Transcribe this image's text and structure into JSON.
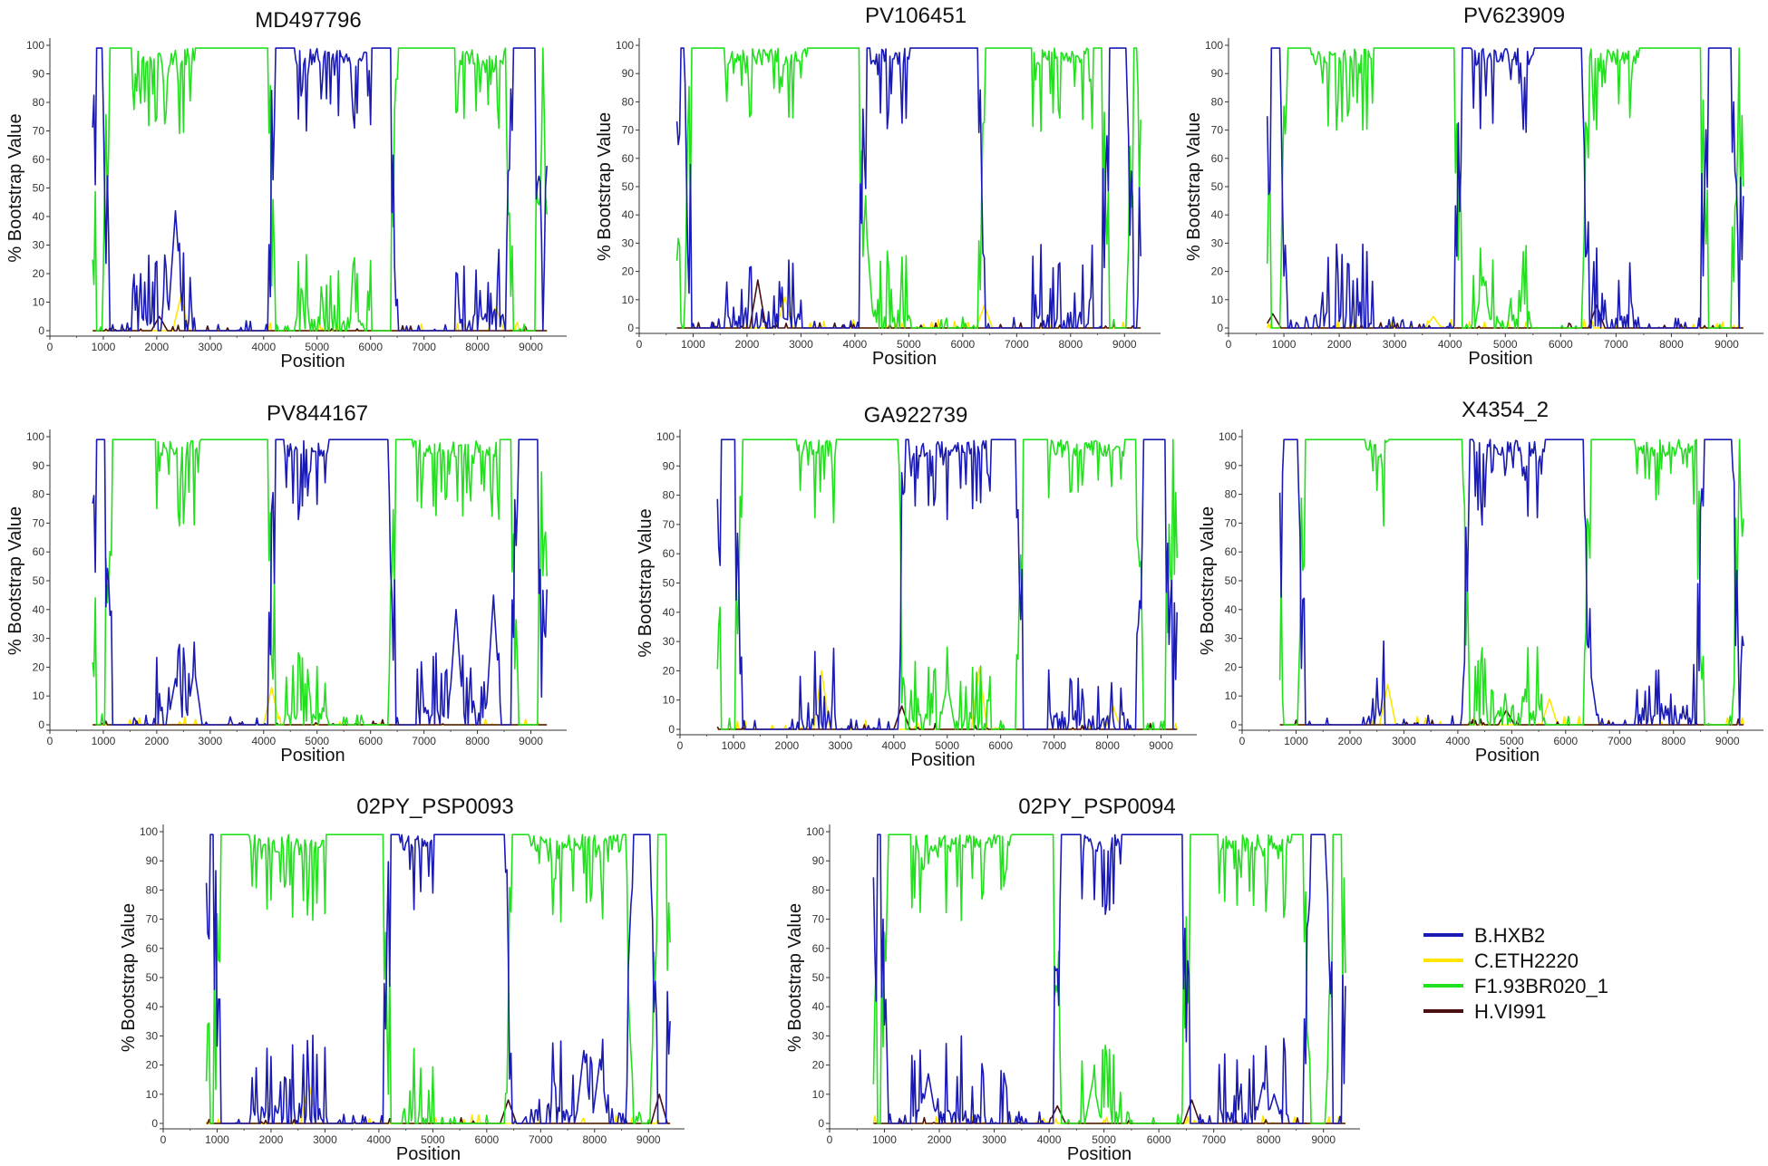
{
  "chart_data": {
    "type": "line",
    "xlabel": "Position",
    "ylabel": "% Bootstrap Value",
    "xlim": [
      0,
      9500
    ],
    "ylim": [
      0,
      100
    ],
    "xticks": [
      0,
      1000,
      2000,
      3000,
      4000,
      5000,
      6000,
      7000,
      8000,
      9000
    ],
    "yticks": [
      0,
      10,
      20,
      30,
      40,
      50,
      60,
      70,
      80,
      90,
      100
    ],
    "legend": [
      {
        "name": "B.HXB2",
        "color": "#1a1ab5"
      },
      {
        "name": "C.ETH2220",
        "color": "#ffe600"
      },
      {
        "name": "F1.93BR020_1",
        "color": "#22e01e"
      },
      {
        "name": "H.VI991",
        "color": "#4a1010"
      }
    ],
    "panels": [
      {
        "title": "MD497796",
        "x_start": 800,
        "x_end": 9300,
        "segments": [
          [
            800,
            1050,
            "B"
          ],
          [
            1050,
            4150,
            "F"
          ],
          [
            4150,
            6450,
            "B"
          ],
          [
            6450,
            8600,
            "F"
          ],
          [
            8600,
            9150,
            "B"
          ],
          [
            9150,
            9300,
            "F"
          ]
        ],
        "noise": [
          [
            1550,
            2700,
            "F"
          ],
          [
            7600,
            8500,
            "F"
          ],
          [
            4600,
            6000,
            "B"
          ]
        ],
        "small_peaks": [
          [
            2450,
            12,
            "C"
          ],
          [
            2350,
            42,
            "B"
          ],
          [
            8350,
            8,
            "C"
          ],
          [
            2050,
            5,
            "H"
          ]
        ]
      },
      {
        "title": "PV106451",
        "x_start": 700,
        "x_end": 9300,
        "segments": [
          [
            700,
            900,
            "B"
          ],
          [
            900,
            4150,
            "F"
          ],
          [
            4150,
            6350,
            "B"
          ],
          [
            6350,
            8650,
            "F"
          ],
          [
            8650,
            9100,
            "B"
          ],
          [
            9100,
            9300,
            "F"
          ]
        ],
        "noise": [
          [
            1600,
            3100,
            "F"
          ],
          [
            7300,
            8400,
            "F"
          ],
          [
            4300,
            5000,
            "B"
          ]
        ],
        "small_peaks": [
          [
            2200,
            17,
            "H"
          ],
          [
            2700,
            11,
            "C"
          ],
          [
            4200,
            38,
            "F"
          ],
          [
            6400,
            8,
            "C"
          ]
        ]
      },
      {
        "title": "PV623909",
        "x_start": 700,
        "x_end": 9300,
        "segments": [
          [
            700,
            1000,
            "B"
          ],
          [
            1000,
            4150,
            "F"
          ],
          [
            4150,
            6450,
            "B"
          ],
          [
            6450,
            8600,
            "F"
          ],
          [
            8600,
            9150,
            "B"
          ],
          [
            9150,
            9300,
            "F"
          ]
        ],
        "noise": [
          [
            1500,
            2600,
            "F"
          ],
          [
            4400,
            5500,
            "B"
          ],
          [
            6500,
            7400,
            "F"
          ]
        ],
        "small_peaks": [
          [
            800,
            5,
            "H"
          ],
          [
            6650,
            8,
            "H"
          ],
          [
            4600,
            18,
            "F"
          ],
          [
            3700,
            4,
            "C"
          ]
        ]
      },
      {
        "title": "PV844167",
        "x_start": 800,
        "x_end": 9300,
        "segments": [
          [
            800,
            1100,
            "B"
          ],
          [
            1100,
            4150,
            "F"
          ],
          [
            4150,
            6400,
            "B"
          ],
          [
            6400,
            8700,
            "F"
          ],
          [
            8700,
            9200,
            "B"
          ],
          [
            9200,
            9300,
            "F"
          ]
        ],
        "noise": [
          [
            2000,
            2800,
            "F"
          ],
          [
            6800,
            8400,
            "F"
          ],
          [
            4400,
            5200,
            "B"
          ]
        ],
        "small_peaks": [
          [
            2350,
            16,
            "B"
          ],
          [
            2700,
            20,
            "B"
          ],
          [
            4150,
            13,
            "C"
          ],
          [
            7600,
            40,
            "B"
          ],
          [
            8300,
            45,
            "B"
          ]
        ]
      },
      {
        "title": "GA922739",
        "x_start": 700,
        "x_end": 9300,
        "segments": [
          [
            700,
            1100,
            "B"
          ],
          [
            1100,
            4150,
            "F"
          ],
          [
            4150,
            6350,
            "B"
          ],
          [
            6350,
            8600,
            "F"
          ],
          [
            8600,
            9150,
            "B"
          ],
          [
            9150,
            9300,
            "F"
          ]
        ],
        "noise": [
          [
            2200,
            2900,
            "F"
          ],
          [
            4300,
            5800,
            "B"
          ],
          [
            6900,
            8300,
            "F"
          ]
        ],
        "small_peaks": [
          [
            2650,
            20,
            "C"
          ],
          [
            5600,
            21,
            "C"
          ],
          [
            4150,
            8,
            "H"
          ],
          [
            8100,
            8,
            "C"
          ],
          [
            5000,
            16,
            "F"
          ]
        ]
      },
      {
        "title": "X4354_2",
        "x_start": 700,
        "x_end": 9300,
        "segments": [
          [
            700,
            1100,
            "B"
          ],
          [
            1100,
            4150,
            "F"
          ],
          [
            4150,
            6400,
            "B"
          ],
          [
            6400,
            8500,
            "F"
          ],
          [
            8500,
            9150,
            "B"
          ],
          [
            9150,
            9300,
            "F"
          ]
        ],
        "noise": [
          [
            2300,
            2700,
            "F"
          ],
          [
            4300,
            5600,
            "B"
          ],
          [
            7300,
            8400,
            "F"
          ]
        ],
        "small_peaks": [
          [
            2700,
            14,
            "C"
          ],
          [
            5700,
            9,
            "C"
          ],
          [
            4900,
            5,
            "H"
          ],
          [
            4200,
            22,
            "B"
          ],
          [
            6450,
            20,
            "B"
          ]
        ]
      },
      {
        "title": "02PY_PSP0093",
        "x_start": 800,
        "x_end": 9400,
        "segments": [
          [
            800,
            1000,
            "B"
          ],
          [
            1000,
            4150,
            "F"
          ],
          [
            4150,
            6400,
            "B"
          ],
          [
            6400,
            8650,
            "F"
          ],
          [
            8650,
            9100,
            "B"
          ],
          [
            9100,
            9400,
            "F"
          ]
        ],
        "noise": [
          [
            1600,
            3000,
            "F"
          ],
          [
            4400,
            5000,
            "B"
          ],
          [
            6800,
            8500,
            "F"
          ]
        ],
        "small_peaks": [
          [
            2700,
            14,
            "C"
          ],
          [
            6400,
            8,
            "H"
          ],
          [
            7800,
            25,
            "B"
          ],
          [
            8100,
            22,
            "B"
          ],
          [
            9200,
            10,
            "H"
          ]
        ]
      },
      {
        "title": "02PY_PSP0094",
        "x_start": 800,
        "x_end": 9400,
        "segments": [
          [
            800,
            1000,
            "B"
          ],
          [
            1000,
            4150,
            "F"
          ],
          [
            4150,
            6500,
            "B"
          ],
          [
            6500,
            8700,
            "F"
          ],
          [
            8700,
            9100,
            "B"
          ],
          [
            9100,
            9400,
            "F"
          ]
        ],
        "noise": [
          [
            1500,
            3300,
            "F"
          ],
          [
            4600,
            5300,
            "B"
          ],
          [
            7100,
            8400,
            "F"
          ]
        ],
        "small_peaks": [
          [
            1800,
            17,
            "B"
          ],
          [
            4150,
            6,
            "H"
          ],
          [
            4800,
            15,
            "F"
          ],
          [
            6600,
            8,
            "H"
          ],
          [
            7900,
            14,
            "B"
          ],
          [
            8100,
            10,
            "B"
          ]
        ]
      }
    ]
  }
}
